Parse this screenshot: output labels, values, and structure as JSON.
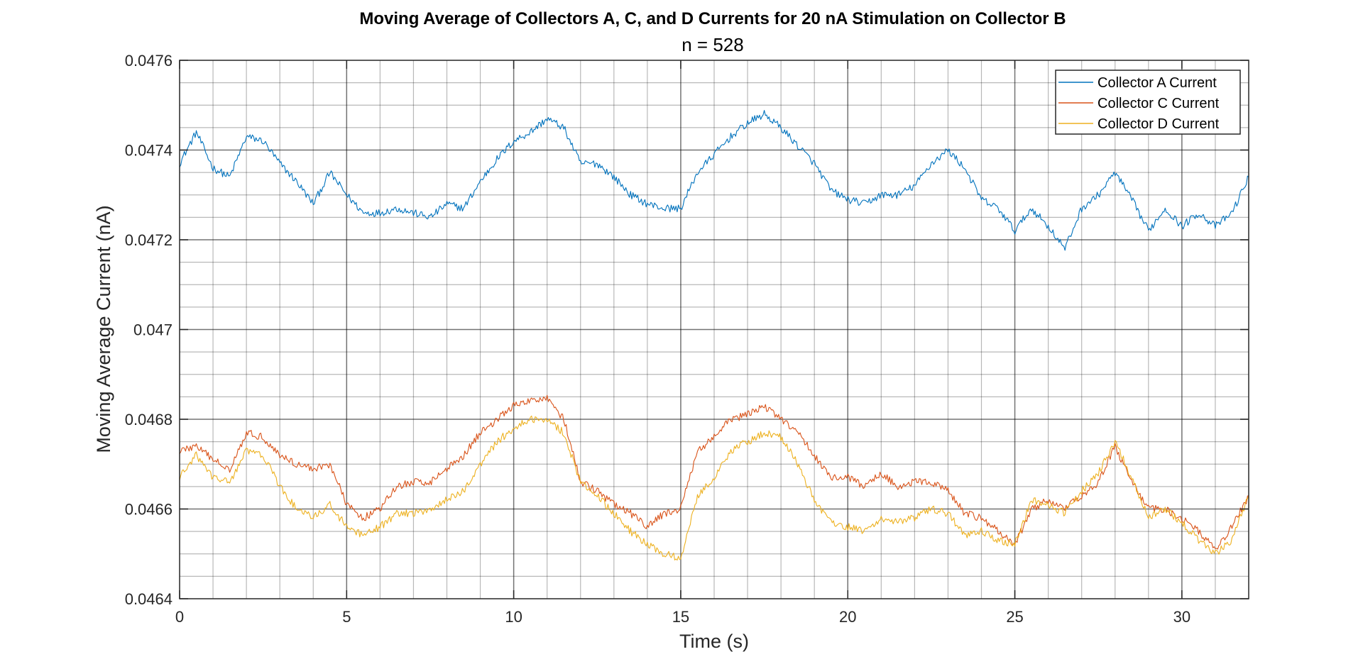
{
  "chart_data": {
    "type": "line",
    "title": "Moving Average of Collectors A, C, and D Currents for 20 nA Stimulation on Collector B",
    "subtitle": "n = 528",
    "xlabel": "Time (s)",
    "ylabel": "Moving Average Current (nA)",
    "xlim": [
      0,
      32
    ],
    "ylim": [
      0.0464,
      0.0476
    ],
    "x_ticks": [
      0,
      5,
      10,
      15,
      20,
      25,
      30
    ],
    "x_tick_labels": [
      "0",
      "5",
      "10",
      "15",
      "20",
      "25",
      "30"
    ],
    "y_ticks": [
      0.0464,
      0.0466,
      0.0468,
      0.047,
      0.0472,
      0.0474,
      0.0476
    ],
    "y_tick_labels": [
      "0.0464",
      "0.0466",
      "0.0468",
      "0.047",
      "0.0472",
      "0.0474",
      "0.0476"
    ],
    "x_minor_step": 1,
    "y_minor_step": 5e-05,
    "grid": true,
    "minor_grid": true,
    "legend_position": "top-right",
    "x": [
      0,
      0.5,
      1,
      1.5,
      2,
      2.5,
      3,
      3.5,
      4,
      4.5,
      5,
      5.5,
      6,
      6.5,
      7,
      7.5,
      8,
      8.5,
      9,
      9.5,
      10,
      10.5,
      11,
      11.5,
      12,
      12.5,
      13,
      13.5,
      14,
      14.5,
      15,
      15.5,
      16,
      16.5,
      17,
      17.5,
      18,
      18.5,
      19,
      19.5,
      20,
      20.5,
      21,
      21.5,
      22,
      22.5,
      23,
      23.5,
      24,
      24.5,
      25,
      25.5,
      26,
      26.5,
      27,
      27.5,
      28,
      28.5,
      29,
      29.5,
      30,
      30.5,
      31,
      31.5,
      32
    ],
    "series": [
      {
        "name": "Collector A Current",
        "color": "#0072BD",
        "values": [
          0.04737,
          0.04744,
          0.04736,
          0.04734,
          0.04743,
          0.04742,
          0.04737,
          0.04733,
          0.04728,
          0.04735,
          0.0473,
          0.04726,
          0.04726,
          0.04727,
          0.04726,
          0.04725,
          0.04728,
          0.04727,
          0.04733,
          0.04738,
          0.04742,
          0.04744,
          0.04747,
          0.04745,
          0.04737,
          0.04737,
          0.04734,
          0.0473,
          0.04728,
          0.04727,
          0.04727,
          0.04735,
          0.04739,
          0.04743,
          0.04746,
          0.04748,
          0.04745,
          0.04741,
          0.04737,
          0.04731,
          0.04729,
          0.04728,
          0.0473,
          0.0473,
          0.04732,
          0.04737,
          0.0474,
          0.04736,
          0.04729,
          0.04727,
          0.04722,
          0.04727,
          0.04723,
          0.04718,
          0.04727,
          0.0473,
          0.04735,
          0.04729,
          0.04722,
          0.04727,
          0.04723,
          0.04726,
          0.04723,
          0.04726,
          0.04734
        ]
      },
      {
        "name": "Collector C Current",
        "color": "#D95319",
        "values": [
          0.04673,
          0.04674,
          0.04671,
          0.04669,
          0.04677,
          0.04676,
          0.04672,
          0.0467,
          0.04669,
          0.0467,
          0.04661,
          0.04658,
          0.0466,
          0.04665,
          0.04666,
          0.04666,
          0.04669,
          0.04672,
          0.04677,
          0.0468,
          0.04683,
          0.04684,
          0.04685,
          0.0468,
          0.04666,
          0.04664,
          0.04661,
          0.04659,
          0.04656,
          0.04659,
          0.0466,
          0.04673,
          0.04676,
          0.0468,
          0.04681,
          0.04683,
          0.0468,
          0.04677,
          0.04672,
          0.04667,
          0.04667,
          0.04665,
          0.04668,
          0.04665,
          0.04666,
          0.04666,
          0.04664,
          0.04659,
          0.04658,
          0.04655,
          0.04652,
          0.0466,
          0.04662,
          0.0466,
          0.04663,
          0.04666,
          0.04674,
          0.04666,
          0.0466,
          0.0466,
          0.04658,
          0.04655,
          0.04651,
          0.04656,
          0.04663
        ]
      },
      {
        "name": "Collector D Current",
        "color": "#EDB120",
        "values": [
          0.04667,
          0.04672,
          0.04667,
          0.04666,
          0.04673,
          0.04672,
          0.04665,
          0.0466,
          0.04658,
          0.04661,
          0.04656,
          0.04654,
          0.04656,
          0.04659,
          0.04659,
          0.0466,
          0.04662,
          0.04664,
          0.0467,
          0.04675,
          0.04678,
          0.0468,
          0.0468,
          0.04677,
          0.04666,
          0.04663,
          0.04659,
          0.04655,
          0.04652,
          0.0465,
          0.04649,
          0.04663,
          0.04667,
          0.04673,
          0.04675,
          0.04677,
          0.04676,
          0.0467,
          0.04662,
          0.04657,
          0.04656,
          0.04655,
          0.04658,
          0.04657,
          0.04658,
          0.0466,
          0.04659,
          0.04654,
          0.04655,
          0.04653,
          0.04652,
          0.04662,
          0.04661,
          0.04659,
          0.04664,
          0.04668,
          0.04675,
          0.04667,
          0.04658,
          0.0466,
          0.04657,
          0.04653,
          0.0465,
          0.04653,
          0.04663
        ]
      }
    ]
  }
}
